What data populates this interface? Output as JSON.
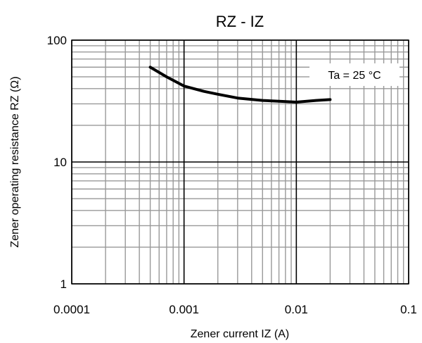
{
  "chart_data": {
    "type": "line",
    "title": "RZ - IZ",
    "xlabel": "Zener current IZ (A)",
    "ylabel": "Zener operating resistance RZ (Ω)",
    "x_scale": "log",
    "y_scale": "log",
    "xlim": [
      0.0001,
      0.1
    ],
    "ylim": [
      1,
      100
    ],
    "x_ticks": [
      "0.0001",
      "0.001",
      "0.01",
      "0.1"
    ],
    "y_ticks": [
      "1",
      "10",
      "100"
    ],
    "grid": true,
    "annotation": "Ta = 25 °C",
    "series": [
      {
        "x": [
          0.0005,
          0.0007,
          0.001,
          0.0015,
          0.002,
          0.003,
          0.005,
          0.007,
          0.01,
          0.015,
          0.02
        ],
        "y": [
          60,
          50,
          42,
          38,
          36,
          33.5,
          32,
          31.5,
          31,
          32,
          32.5
        ]
      }
    ],
    "colors": {
      "series": "#000000",
      "minor_grid": "#999999",
      "major_grid": "#000000"
    }
  }
}
